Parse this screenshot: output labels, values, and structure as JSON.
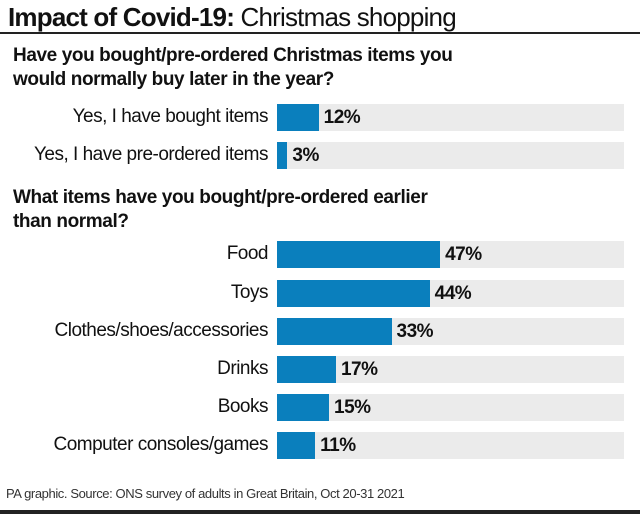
{
  "title_bold": "Impact of Covid-19:",
  "title_rest": " Christmas shopping",
  "footer": "PA graphic. Source: ONS survey of adults in Great Britain, Oct 20-31 2021",
  "chart_data": [
    {
      "type": "bar",
      "orientation": "horizontal",
      "title": "Have you bought/pre-ordered Christmas items you would normally buy later in the year?",
      "categories": [
        "Yes, I have bought items",
        "Yes, I have pre-ordered items"
      ],
      "values": [
        12,
        3
      ],
      "labels": [
        "12%",
        "3%"
      ],
      "xlim": [
        0,
        100
      ],
      "color": "#0a7fbd",
      "track_color": "#ebebeb"
    },
    {
      "type": "bar",
      "orientation": "horizontal",
      "title": "What items have you bought/pre-ordered earlier than normal?",
      "categories": [
        "Food",
        "Toys",
        "Clothes/shoes/accessories",
        "Drinks",
        "Books",
        "Computer consoles/games"
      ],
      "values": [
        47,
        44,
        33,
        17,
        15,
        11
      ],
      "labels": [
        "47%",
        "44%",
        "33%",
        "17%",
        "15%",
        "11%"
      ],
      "xlim": [
        0,
        100
      ],
      "color": "#0a7fbd",
      "track_color": "#ebebeb"
    }
  ]
}
